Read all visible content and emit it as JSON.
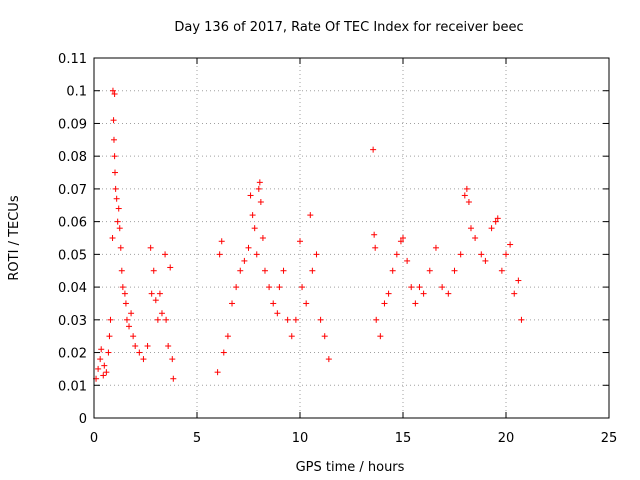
{
  "chart_data": {
    "type": "scatter",
    "title": "Day 136 of 2017, Rate Of TEC Index for receiver beec",
    "xlabel": "GPS time / hours",
    "ylabel": "ROTI / TECUs",
    "xlim": [
      0,
      25
    ],
    "ylim": [
      0,
      0.11
    ],
    "x_ticks": [
      0,
      5,
      10,
      15,
      20,
      25
    ],
    "x_tick_labels": [
      "0",
      "5",
      "10",
      "15",
      "20",
      "25"
    ],
    "y_ticks": [
      0,
      0.01,
      0.02,
      0.03,
      0.04,
      0.05,
      0.06,
      0.07,
      0.08,
      0.09,
      0.1,
      0.11
    ],
    "y_tick_labels": [
      "0",
      "0.01",
      "0.02",
      "0.03",
      "0.04",
      "0.05",
      "0.06",
      "0.07",
      "0.08",
      "0.09",
      "0.1",
      "0.11"
    ],
    "grid": true,
    "marker": "plus",
    "marker_color": "#ff0000",
    "series": [
      {
        "points": [
          [
            0.1,
            0.012
          ],
          [
            0.2,
            0.015
          ],
          [
            0.3,
            0.018
          ],
          [
            0.35,
            0.021
          ],
          [
            0.45,
            0.013
          ],
          [
            0.5,
            0.016
          ],
          [
            0.6,
            0.014
          ],
          [
            0.7,
            0.02
          ],
          [
            0.75,
            0.025
          ],
          [
            0.8,
            0.03
          ],
          [
            0.9,
            0.055
          ],
          [
            0.92,
            0.1
          ],
          [
            0.95,
            0.091
          ],
          [
            0.97,
            0.085
          ],
          [
            1.0,
            0.099
          ],
          [
            1.0,
            0.08
          ],
          [
            1.02,
            0.075
          ],
          [
            1.05,
            0.07
          ],
          [
            1.1,
            0.067
          ],
          [
            1.15,
            0.06
          ],
          [
            1.2,
            0.064
          ],
          [
            1.25,
            0.058
          ],
          [
            1.3,
            0.052
          ],
          [
            1.35,
            0.045
          ],
          [
            1.4,
            0.04
          ],
          [
            1.5,
            0.038
          ],
          [
            1.55,
            0.035
          ],
          [
            1.6,
            0.03
          ],
          [
            1.7,
            0.028
          ],
          [
            1.8,
            0.032
          ],
          [
            1.9,
            0.025
          ],
          [
            2.0,
            0.022
          ],
          [
            2.2,
            0.02
          ],
          [
            2.4,
            0.018
          ],
          [
            2.6,
            0.022
          ],
          [
            2.75,
            0.052
          ],
          [
            2.8,
            0.038
          ],
          [
            2.9,
            0.045
          ],
          [
            3.0,
            0.036
          ],
          [
            3.1,
            0.03
          ],
          [
            3.2,
            0.038
          ],
          [
            3.3,
            0.032
          ],
          [
            3.45,
            0.05
          ],
          [
            3.5,
            0.03
          ],
          [
            3.6,
            0.022
          ],
          [
            3.7,
            0.046
          ],
          [
            3.8,
            0.018
          ],
          [
            3.85,
            0.012
          ],
          [
            6.0,
            0.014
          ],
          [
            6.1,
            0.05
          ],
          [
            6.2,
            0.054
          ],
          [
            6.3,
            0.02
          ],
          [
            6.5,
            0.025
          ],
          [
            6.7,
            0.035
          ],
          [
            6.9,
            0.04
          ],
          [
            7.1,
            0.045
          ],
          [
            7.3,
            0.048
          ],
          [
            7.5,
            0.052
          ],
          [
            7.6,
            0.068
          ],
          [
            7.7,
            0.062
          ],
          [
            7.8,
            0.058
          ],
          [
            7.9,
            0.05
          ],
          [
            8.0,
            0.07
          ],
          [
            8.05,
            0.072
          ],
          [
            8.1,
            0.066
          ],
          [
            8.2,
            0.055
          ],
          [
            8.3,
            0.045
          ],
          [
            8.5,
            0.04
          ],
          [
            8.7,
            0.035
          ],
          [
            8.9,
            0.032
          ],
          [
            9.0,
            0.04
          ],
          [
            9.2,
            0.045
          ],
          [
            9.4,
            0.03
          ],
          [
            9.6,
            0.025
          ],
          [
            9.8,
            0.03
          ],
          [
            10.0,
            0.054
          ],
          [
            10.1,
            0.04
          ],
          [
            10.3,
            0.035
          ],
          [
            10.5,
            0.062
          ],
          [
            10.6,
            0.045
          ],
          [
            10.8,
            0.05
          ],
          [
            11.0,
            0.03
          ],
          [
            11.2,
            0.025
          ],
          [
            11.4,
            0.018
          ],
          [
            13.55,
            0.082
          ],
          [
            13.6,
            0.056
          ],
          [
            13.65,
            0.052
          ],
          [
            13.7,
            0.03
          ],
          [
            13.9,
            0.025
          ],
          [
            14.1,
            0.035
          ],
          [
            14.3,
            0.038
          ],
          [
            14.5,
            0.045
          ],
          [
            14.7,
            0.05
          ],
          [
            14.9,
            0.054
          ],
          [
            15.0,
            0.055
          ],
          [
            15.2,
            0.048
          ],
          [
            15.4,
            0.04
          ],
          [
            15.6,
            0.035
          ],
          [
            15.8,
            0.04
          ],
          [
            16.0,
            0.038
          ],
          [
            16.3,
            0.045
          ],
          [
            16.6,
            0.052
          ],
          [
            16.9,
            0.04
          ],
          [
            17.2,
            0.038
          ],
          [
            17.5,
            0.045
          ],
          [
            17.8,
            0.05
          ],
          [
            18.0,
            0.068
          ],
          [
            18.1,
            0.07
          ],
          [
            18.2,
            0.066
          ],
          [
            18.3,
            0.058
          ],
          [
            18.5,
            0.055
          ],
          [
            18.8,
            0.05
          ],
          [
            19.0,
            0.048
          ],
          [
            19.3,
            0.058
          ],
          [
            19.5,
            0.06
          ],
          [
            19.6,
            0.061
          ],
          [
            19.8,
            0.045
          ],
          [
            20.0,
            0.05
          ],
          [
            20.2,
            0.053
          ],
          [
            20.4,
            0.038
          ],
          [
            20.6,
            0.042
          ],
          [
            20.75,
            0.03
          ]
        ]
      }
    ]
  }
}
